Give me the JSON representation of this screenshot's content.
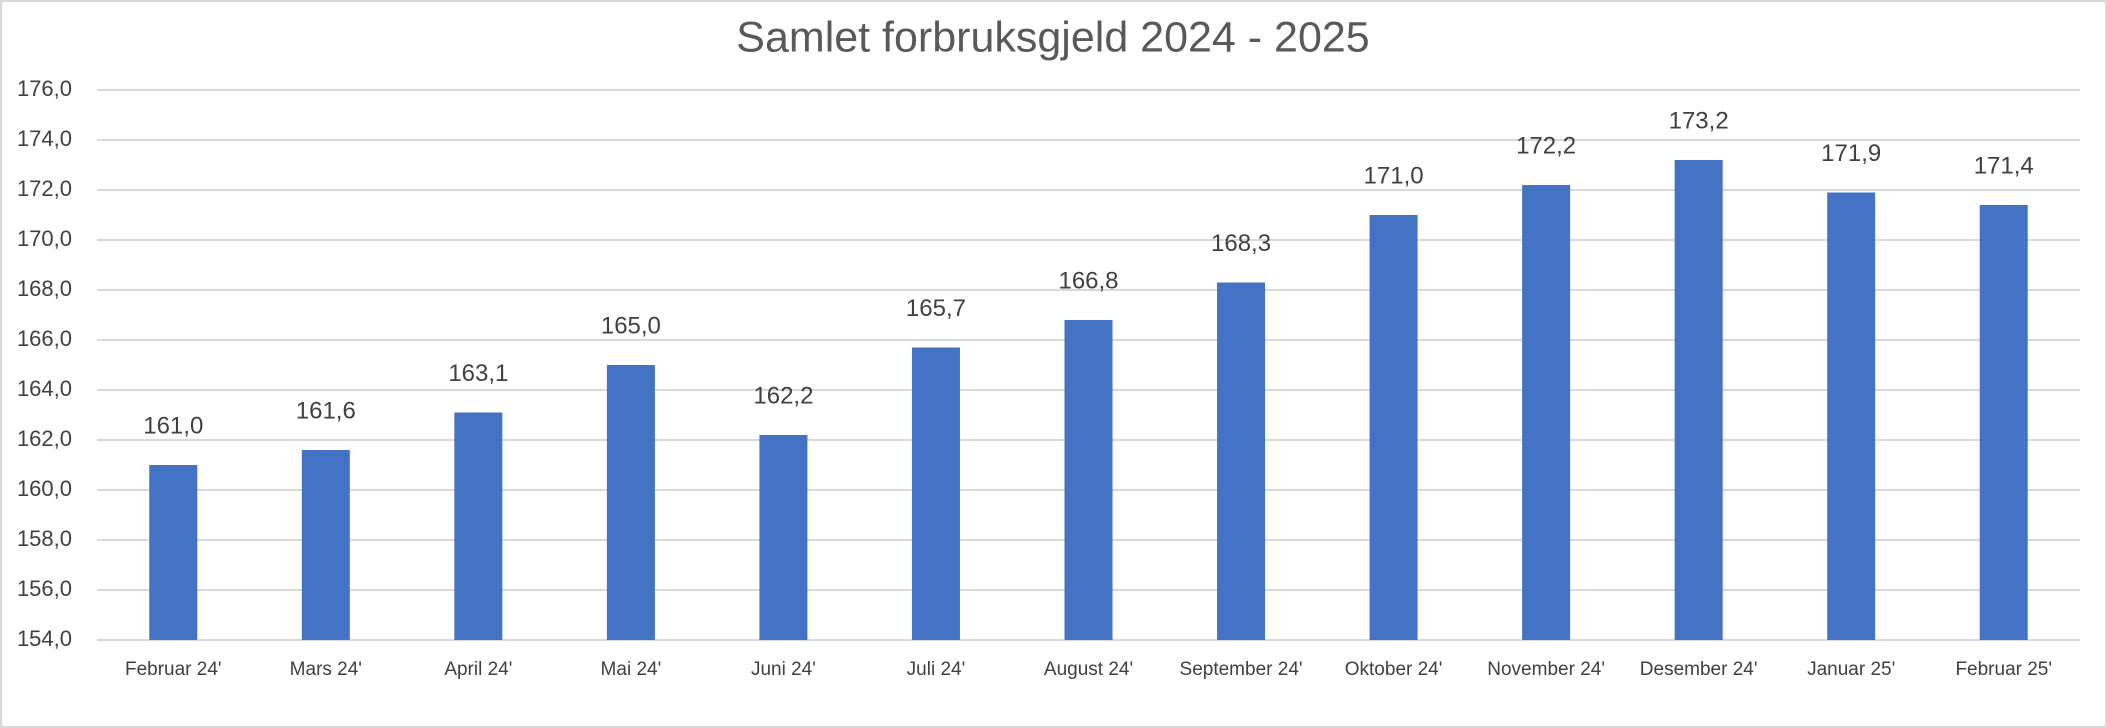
{
  "chart_data": {
    "type": "bar",
    "title": "Samlet forbruksgjeld 2024 - 2025",
    "categories": [
      "Februar 24'",
      "Mars 24'",
      "April 24'",
      "Mai 24'",
      "Juni 24'",
      "Juli 24'",
      "August 24'",
      "September 24'",
      "Oktober 24'",
      "November 24'",
      "Desember 24'",
      "Januar 25'",
      "Februar 25'"
    ],
    "values": [
      161.0,
      161.6,
      163.1,
      165.0,
      162.2,
      165.7,
      166.8,
      168.3,
      171.0,
      172.2,
      173.2,
      171.9,
      171.4
    ],
    "value_labels": [
      "161,0",
      "161,6",
      "163,1",
      "165,0",
      "162,2",
      "165,7",
      "166,8",
      "168,3",
      "171,0",
      "172,2",
      "173,2",
      "171,9",
      "171,4"
    ],
    "color": "#4472c4",
    "ylim": [
      154,
      176
    ],
    "yticks": [
      {
        "value": 154,
        "label": "154,0"
      },
      {
        "value": 156,
        "label": "156,0"
      },
      {
        "value": 158,
        "label": "158,0"
      },
      {
        "value": 160,
        "label": "160,0"
      },
      {
        "value": 162,
        "label": "162,0"
      },
      {
        "value": 164,
        "label": "164,0"
      },
      {
        "value": 166,
        "label": "166,0"
      },
      {
        "value": 168,
        "label": "168,0"
      },
      {
        "value": 170,
        "label": "170,0"
      },
      {
        "value": 172,
        "label": "172,0"
      },
      {
        "value": 174,
        "label": "174,0"
      },
      {
        "value": 176,
        "label": "176,0"
      }
    ],
    "grid": true
  }
}
